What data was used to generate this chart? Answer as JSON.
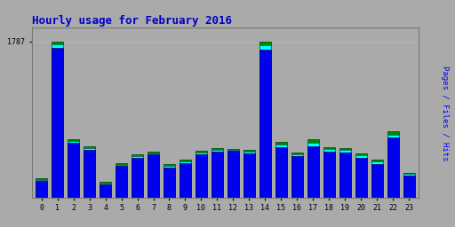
{
  "title": "Hourly usage for February 2016",
  "title_color": "#0000cc",
  "ylabel_right": "Pages / Files / Hits",
  "ytick_label": "1787",
  "hours": [
    0,
    1,
    2,
    3,
    4,
    5,
    6,
    7,
    8,
    9,
    10,
    11,
    12,
    13,
    14,
    15,
    16,
    17,
    18,
    19,
    20,
    21,
    22,
    23
  ],
  "pages": [
    220,
    1787,
    670,
    590,
    175,
    395,
    490,
    530,
    385,
    435,
    535,
    565,
    560,
    545,
    1787,
    635,
    520,
    665,
    580,
    570,
    510,
    435,
    755,
    280
  ],
  "files": [
    205,
    1750,
    645,
    570,
    162,
    378,
    472,
    510,
    365,
    415,
    520,
    545,
    550,
    528,
    1740,
    602,
    498,
    622,
    555,
    542,
    482,
    412,
    722,
    268
  ],
  "hits": [
    190,
    1710,
    622,
    542,
    150,
    358,
    452,
    490,
    345,
    392,
    498,
    522,
    535,
    508,
    1695,
    576,
    472,
    590,
    528,
    512,
    452,
    388,
    692,
    252
  ],
  "bar_color_pages": "#008800",
  "bar_color_files": "#00ffff",
  "bar_color_hits": "#0000ee",
  "bg_color": "#aaaaaa",
  "ylim_max": 1950,
  "bar_width": 0.7
}
